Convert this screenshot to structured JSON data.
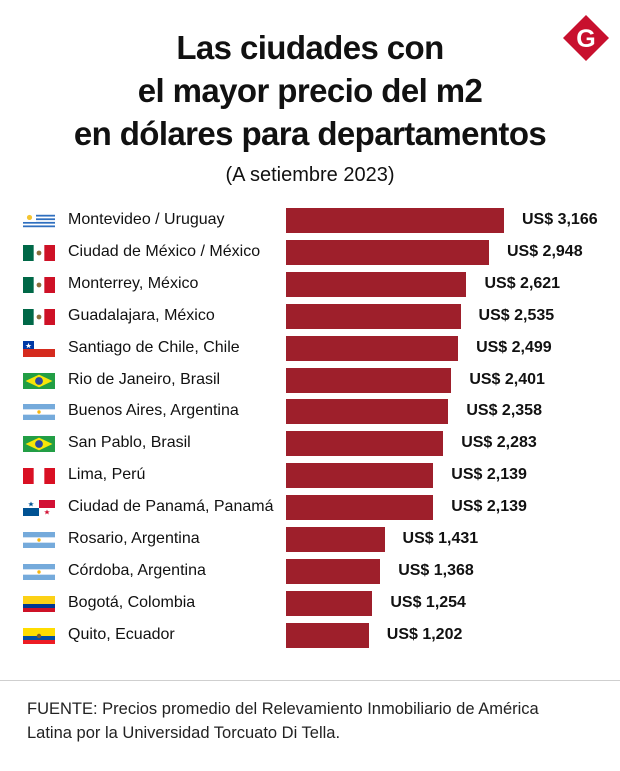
{
  "header": {
    "title_line1": "Las ciudades con",
    "title_line2": "el mayor precio del m2",
    "title_line3": "en dólares para departamentos",
    "subtitle": "(A setiembre 2023)",
    "logo_letter": "G"
  },
  "colors": {
    "bar": "#9e1f2b",
    "logo": "#c8102e"
  },
  "chart_data": {
    "type": "bar",
    "orientation": "horizontal",
    "title": "Las ciudades con el mayor precio del m2 en dólares para departamentos",
    "subtitle": "(A setiembre 2023)",
    "unit_prefix": "US$",
    "categories": [
      "Montevideo / Uruguay",
      "Ciudad de México / México",
      "Monterrey, México",
      "Guadalajara, México",
      "Santiago de Chile, Chile",
      "Rio de Janeiro, Brasil",
      "Buenos Aires, Argentina",
      "San Pablo, Brasil",
      "Lima, Perú",
      "Ciudad de Panamá, Panamá",
      "Rosario, Argentina",
      "Córdoba, Argentina",
      "Bogotá, Colombia",
      "Quito, Ecuador"
    ],
    "values": [
      3166,
      2948,
      2621,
      2535,
      2499,
      2401,
      2358,
      2283,
      2139,
      2139,
      1431,
      1368,
      1254,
      1202
    ],
    "value_labels": [
      "US$ 3,166",
      "US$ 2,948",
      "US$ 2,621",
      "US$ 2,535",
      "US$ 2,499",
      "US$ 2,401",
      "US$ 2,358",
      "US$ 2,283",
      "US$ 2,139",
      "US$ 2,139",
      "US$ 1,431",
      "US$ 1,368",
      "US$ 1,254",
      "US$ 1,202"
    ],
    "flags": [
      "uruguay-flag-icon",
      "mexico-flag-icon",
      "mexico-flag-icon",
      "mexico-flag-icon",
      "chile-flag-icon",
      "brazil-flag-icon",
      "argentina-flag-icon",
      "brazil-flag-icon",
      "peru-flag-icon",
      "panama-flag-icon",
      "argentina-flag-icon",
      "argentina-flag-icon",
      "colombia-flag-icon",
      "ecuador-flag-icon"
    ],
    "xlim": [
      0,
      3166
    ],
    "xlabel": "",
    "ylabel": ""
  },
  "footer": {
    "source": "FUENTE: Precios promedio del Relevamiento Inmobiliario de América Latina por la Universidad Torcuato Di Tella."
  }
}
